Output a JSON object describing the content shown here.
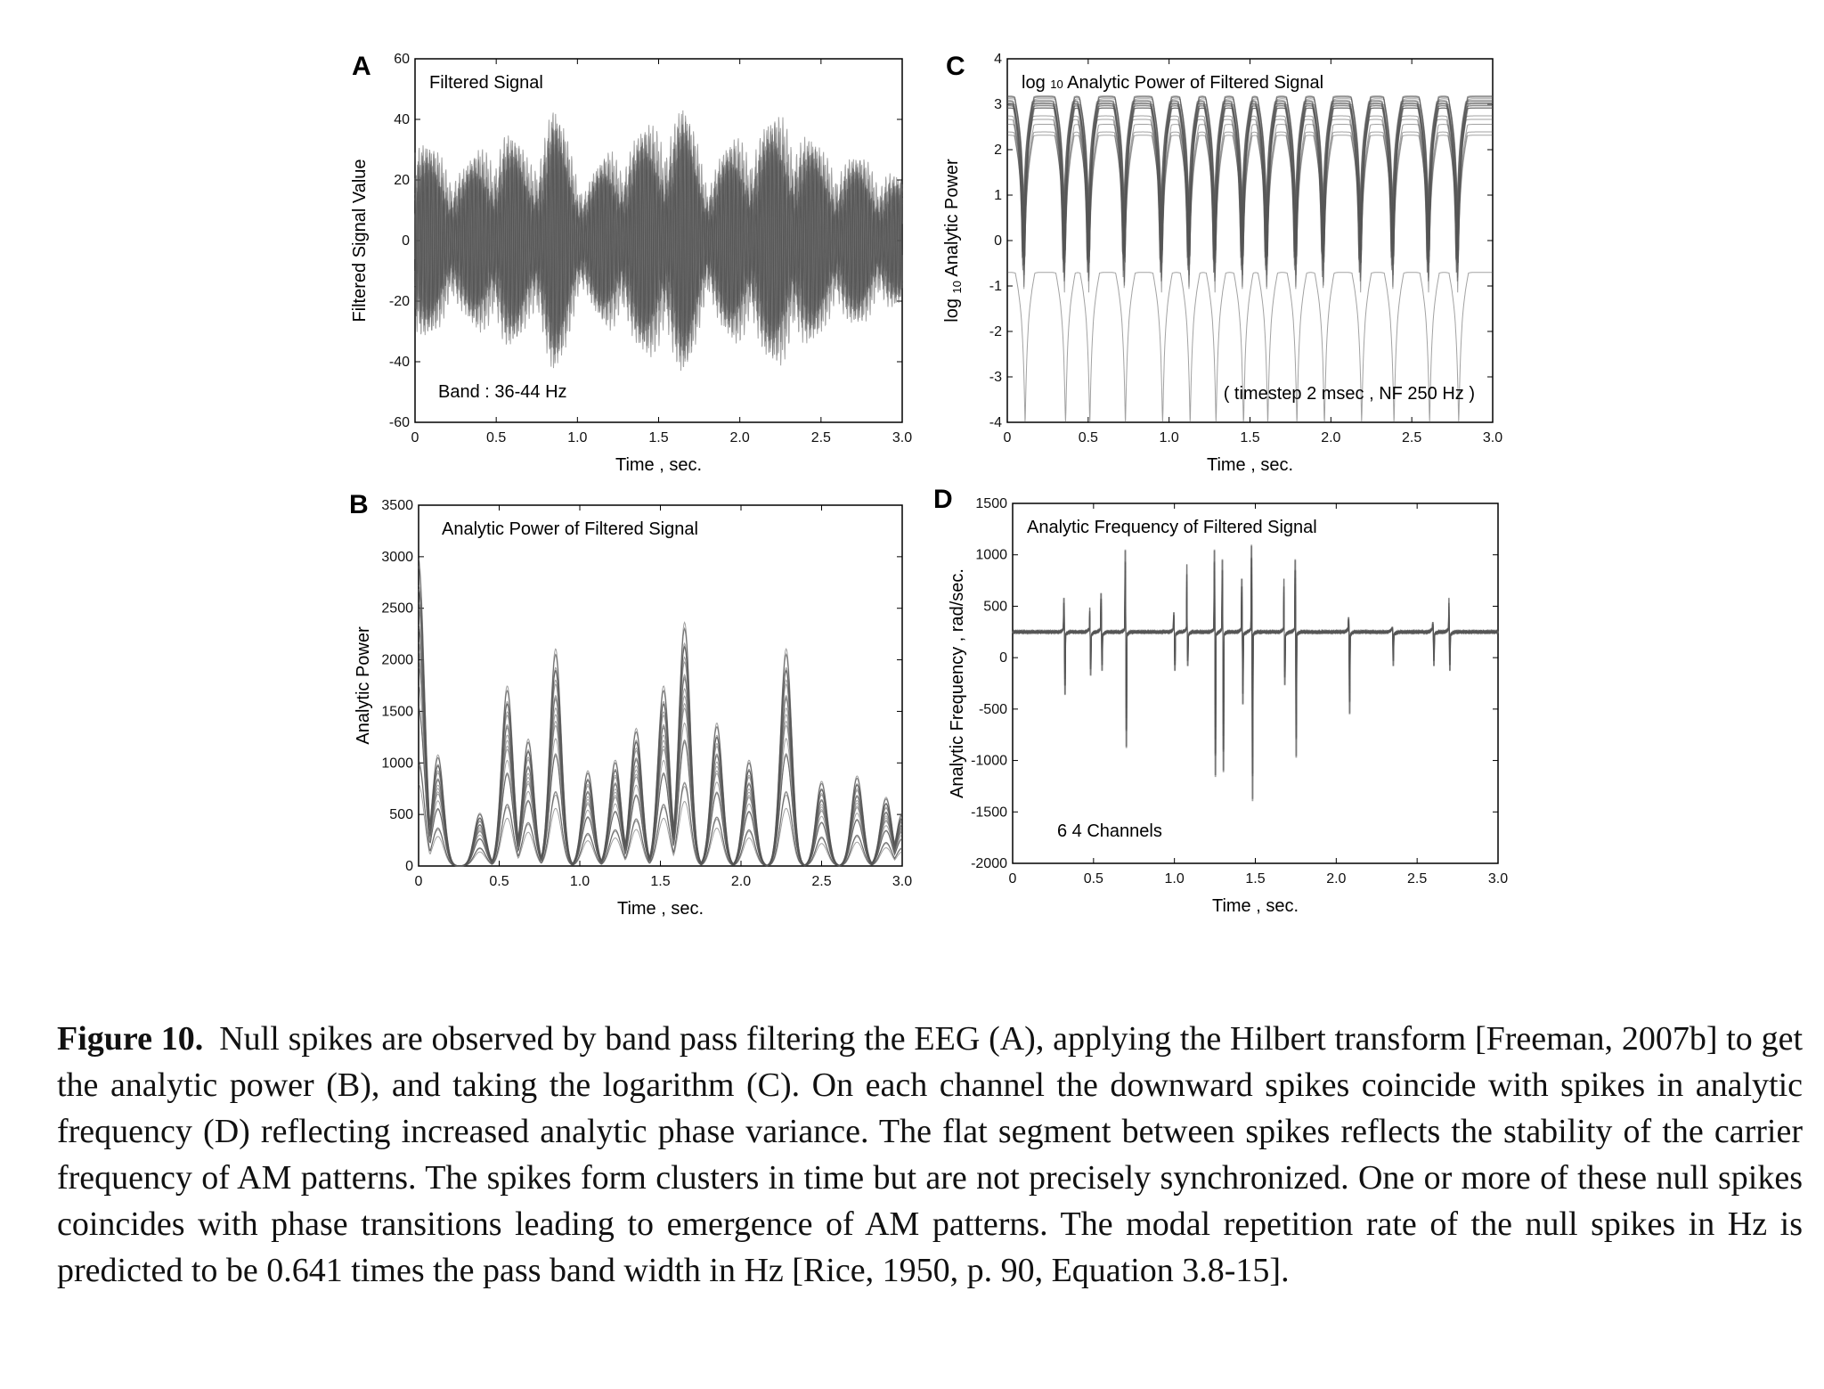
{
  "caption": {
    "label": "Figure 10.",
    "text": "Null spikes are observed by band pass filtering the EEG (A), applying the Hilbert transform [Freeman, 2007b] to get the analytic power (B), and taking the logarithm (C). On each channel the downward spikes coincide with spikes in analytic frequency (D) reflecting increased analytic phase variance. The flat segment between spikes reflects the stability of the carrier frequency of AM patterns. The spikes form clusters in time but are not precisely synchronized. One or more of these null spikes coincides with phase transitions leading to emergence of AM patterns. The modal repetition rate of the null spikes in Hz is predicted to be 0.641 times the pass band width in Hz [Rice, 1950, p. 90, Equation 3.8-15]."
  },
  "chart_data": [
    {
      "id": "A",
      "type": "line",
      "panel_label": "A",
      "inner_title": "Filtered Signal",
      "annotation": "Band : 36-44 Hz",
      "xlabel": "Time , sec.",
      "ylabel": "Filtered Signal Value",
      "xlim": [
        0,
        3.0
      ],
      "ylim": [
        -60,
        60
      ],
      "x_ticks": [
        "0",
        "0.5",
        "1.0",
        "1.5",
        "2.0",
        "2.5",
        "3.0"
      ],
      "y_ticks": [
        "60",
        "40",
        "20",
        "0",
        "-20",
        "-40",
        "-60"
      ],
      "envelope_peaks": [
        [
          0.0,
          35
        ],
        [
          0.12,
          30
        ],
        [
          0.3,
          25
        ],
        [
          0.55,
          38
        ],
        [
          0.7,
          28
        ],
        [
          0.85,
          45
        ],
        [
          1.05,
          20
        ],
        [
          1.2,
          30
        ],
        [
          1.35,
          35
        ],
        [
          1.5,
          40
        ],
        [
          1.65,
          45
        ],
        [
          1.8,
          25
        ],
        [
          2.0,
          35
        ],
        [
          2.2,
          40
        ],
        [
          2.3,
          43
        ],
        [
          2.5,
          30
        ],
        [
          2.7,
          28
        ],
        [
          2.9,
          25
        ],
        [
          3.0,
          20
        ]
      ],
      "channels": 64
    },
    {
      "id": "B",
      "type": "line",
      "panel_label": "B",
      "inner_title": "Analytic Power of Filtered Signal",
      "xlabel": "Time , sec.",
      "ylabel": "Analytic Power",
      "xlim": [
        0,
        3.0
      ],
      "ylim": [
        0,
        3500
      ],
      "x_ticks": [
        "0",
        "0.5",
        "1.0",
        "1.5",
        "2.0",
        "2.5",
        "3.0"
      ],
      "y_ticks": [
        "3500",
        "3000",
        "2500",
        "2000",
        "1500",
        "1000",
        "500",
        "0"
      ],
      "peaks": [
        [
          0.0,
          2900
        ],
        [
          0.12,
          1050
        ],
        [
          0.38,
          500
        ],
        [
          0.55,
          1700
        ],
        [
          0.68,
          1200
        ],
        [
          0.85,
          2050
        ],
        [
          1.05,
          900
        ],
        [
          1.22,
          1000
        ],
        [
          1.35,
          1300
        ],
        [
          1.52,
          1700
        ],
        [
          1.65,
          2300
        ],
        [
          1.85,
          1350
        ],
        [
          2.05,
          1000
        ],
        [
          2.28,
          2050
        ],
        [
          2.5,
          800
        ],
        [
          2.72,
          850
        ],
        [
          2.9,
          650
        ],
        [
          3.0,
          500
        ]
      ],
      "channels": 64
    },
    {
      "id": "C",
      "type": "line",
      "panel_label": "C",
      "inner_title_prefix": "log",
      "inner_title_subscript": "10",
      "inner_title_suffix": "Analytic Power of Filtered Signal",
      "annotation": "( timestep 2 msec , NF 250 Hz )",
      "xlabel": "Time , sec.",
      "ylabel_prefix": "log",
      "ylabel_subscript": "10",
      "ylabel_suffix": "Analytic Power",
      "xlim": [
        0,
        3.0
      ],
      "ylim": [
        -4,
        4
      ],
      "x_ticks": [
        "0",
        "0.5",
        "1.0",
        "1.5",
        "2.0",
        "2.5",
        "3.0"
      ],
      "y_ticks": [
        "4",
        "3",
        "2",
        "1",
        "0",
        "-1",
        "-2",
        "-3",
        "-4"
      ],
      "null_spikes": [
        0.1,
        0.35,
        0.5,
        0.72,
        0.95,
        1.12,
        1.28,
        1.45,
        1.6,
        1.78,
        1.95,
        2.18,
        2.38,
        2.6,
        2.78
      ],
      "channels": 64
    },
    {
      "id": "D",
      "type": "line",
      "panel_label": "D",
      "inner_title": "Analytic Frequency of Filtered Signal",
      "annotation": "6 4  Channels",
      "xlabel": "Time , sec.",
      "ylabel": "Analytic Frequency , rad/sec.",
      "xlim": [
        0,
        3.0
      ],
      "ylim": [
        -2000,
        1500
      ],
      "x_ticks": [
        "0",
        "0.5",
        "1.0",
        "1.5",
        "2.0",
        "2.5",
        "3.0"
      ],
      "y_ticks": [
        "1500",
        "1000",
        "500",
        "0",
        "-500",
        "-1000",
        "-1500",
        "-2000"
      ],
      "baseline": 250,
      "spikes": [
        [
          0.32,
          600,
          -400
        ],
        [
          0.48,
          500,
          -200
        ],
        [
          0.55,
          650,
          -150
        ],
        [
          0.7,
          1100,
          -950
        ],
        [
          1.0,
          450,
          -150
        ],
        [
          1.08,
          950,
          -100
        ],
        [
          1.25,
          1100,
          -1250
        ],
        [
          1.3,
          1000,
          -1200
        ],
        [
          1.42,
          800,
          -500
        ],
        [
          1.48,
          1150,
          -1500
        ],
        [
          1.68,
          800,
          -300
        ],
        [
          1.75,
          1000,
          -1050
        ],
        [
          2.08,
          400,
          -600
        ],
        [
          2.35,
          300,
          -100
        ],
        [
          2.6,
          350,
          -100
        ],
        [
          2.7,
          600,
          -150
        ]
      ],
      "channels": 64
    }
  ]
}
